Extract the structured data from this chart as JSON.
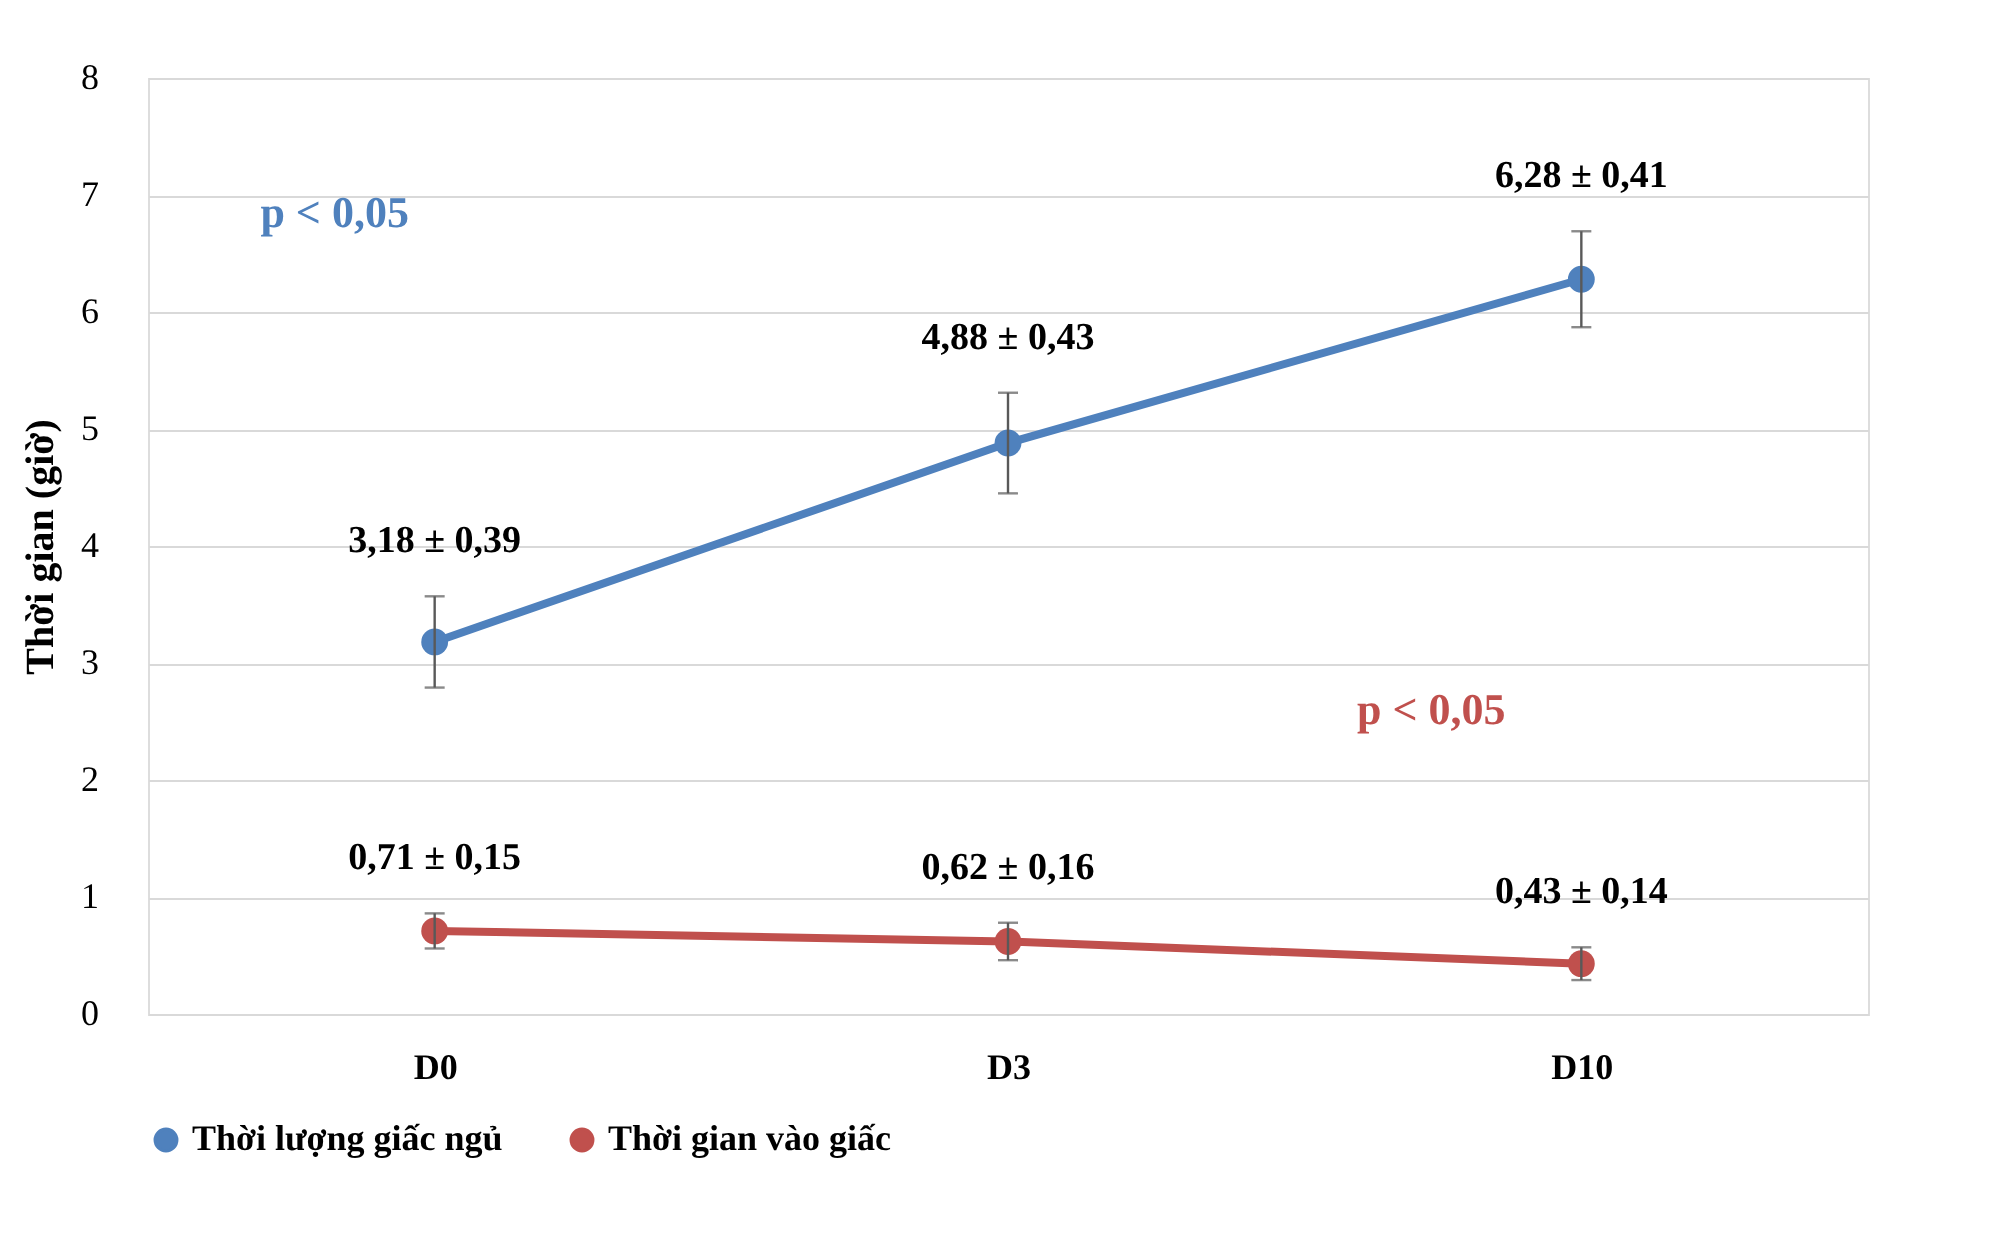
{
  "chart_data": {
    "type": "line",
    "ylabel": "Thời gian (giờ)",
    "categories": [
      "D0",
      "D3",
      "D10"
    ],
    "series": [
      {
        "name": "Thời lượng giấc ngủ",
        "color": "#4f81bd",
        "values": [
          3.18,
          4.88,
          6.28
        ],
        "errors": [
          0.39,
          0.43,
          0.41
        ],
        "value_labels": [
          "3,18 ± 0,39",
          "4,88 ± 0,43",
          "6,28 ± 0,41"
        ]
      },
      {
        "name": "Thời gian vào giấc",
        "color": "#c0504d",
        "values": [
          0.71,
          0.62,
          0.43
        ],
        "errors": [
          0.15,
          0.16,
          0.14
        ],
        "value_labels": [
          "0,71 ± 0,15",
          "0,62 ± 0,16",
          "0,43 ± 0,14"
        ]
      }
    ],
    "annotations": [
      "p < 0,05",
      "p < 0,05"
    ],
    "ylim": [
      0,
      8
    ],
    "yticks": [
      0,
      1,
      2,
      3,
      4,
      5,
      6,
      7,
      8
    ],
    "grid": "y",
    "legend": "bottom",
    "marker": "circle",
    "line_style": "solid"
  }
}
